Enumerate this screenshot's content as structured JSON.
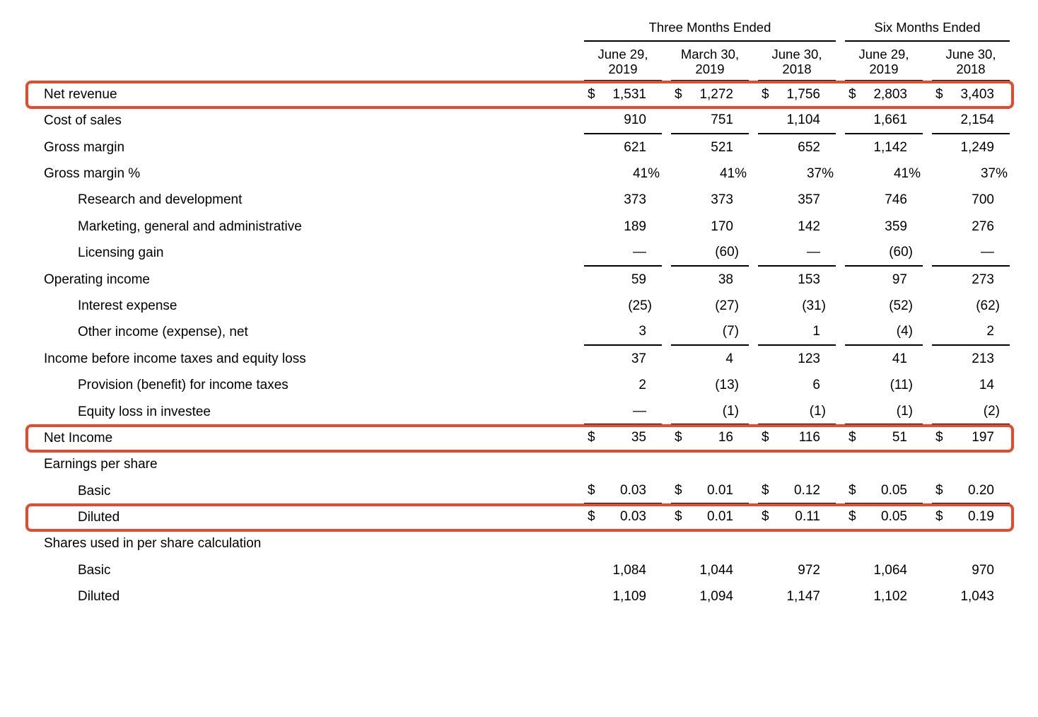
{
  "page": {
    "background": "#ffffff"
  },
  "accent": {
    "highlight_border": "#e8492b",
    "rule_color": "#000000"
  },
  "table": {
    "currency_symbol": "$",
    "groups": [
      {
        "label": "Three Months Ended"
      },
      {
        "label": "Six Months Ended"
      }
    ],
    "columns": [
      {
        "month": "June 29,",
        "year": "2019"
      },
      {
        "month": "March 30,",
        "year": "2019"
      },
      {
        "month": "June 30,",
        "year": "2018"
      },
      {
        "month": "June 29,",
        "year": "2019"
      },
      {
        "month": "June 30,",
        "year": "2018"
      }
    ],
    "rows": [
      {
        "label": "Net revenue",
        "indent": 0,
        "dollar": true,
        "highlight": true,
        "rule_below": false,
        "values": [
          "1,531",
          "1,272",
          "1,756",
          "2,803",
          "3,403"
        ]
      },
      {
        "label": "Cost of sales",
        "indent": 0,
        "dollar": false,
        "highlight": false,
        "rule_below": true,
        "values": [
          "910",
          "751",
          "1,104",
          "1,661",
          "2,154"
        ]
      },
      {
        "label": "Gross margin",
        "indent": 0,
        "dollar": false,
        "highlight": false,
        "rule_below": false,
        "values": [
          "621",
          "521",
          "652",
          "1,142",
          "1,249"
        ]
      },
      {
        "label": "Gross margin %",
        "indent": 0,
        "dollar": false,
        "highlight": false,
        "rule_below": false,
        "values": [
          "41%",
          "41%",
          "37%",
          "41%",
          "37%"
        ]
      },
      {
        "label": "Research and development",
        "indent": 1,
        "dollar": false,
        "highlight": false,
        "rule_below": false,
        "values": [
          "373",
          "373",
          "357",
          "746",
          "700"
        ]
      },
      {
        "label": "Marketing, general and administrative",
        "indent": 1,
        "dollar": false,
        "highlight": false,
        "rule_below": false,
        "values": [
          "189",
          "170",
          "142",
          "359",
          "276"
        ]
      },
      {
        "label": "Licensing gain",
        "indent": 1,
        "dollar": false,
        "highlight": false,
        "rule_below": true,
        "values": [
          "—",
          "(60)",
          "—",
          "(60)",
          "—"
        ]
      },
      {
        "label": "Operating income",
        "indent": 0,
        "dollar": false,
        "highlight": false,
        "rule_below": false,
        "values": [
          "59",
          "38",
          "153",
          "97",
          "273"
        ]
      },
      {
        "label": "Interest expense",
        "indent": 1,
        "dollar": false,
        "highlight": false,
        "rule_below": false,
        "values": [
          "(25)",
          "(27)",
          "(31)",
          "(52)",
          "(62)"
        ]
      },
      {
        "label": "Other income (expense), net",
        "indent": 1,
        "dollar": false,
        "highlight": false,
        "rule_below": true,
        "values": [
          "3",
          "(7)",
          "1",
          "(4)",
          "2"
        ]
      },
      {
        "label": "Income before income taxes and equity loss",
        "indent": 0,
        "dollar": false,
        "highlight": false,
        "rule_below": false,
        "values": [
          "37",
          "4",
          "123",
          "41",
          "213"
        ]
      },
      {
        "label": "Provision (benefit) for income taxes",
        "indent": 1,
        "dollar": false,
        "highlight": false,
        "rule_below": false,
        "values": [
          "2",
          "(13)",
          "6",
          "(11)",
          "14"
        ]
      },
      {
        "label": "Equity loss in investee",
        "indent": 1,
        "dollar": false,
        "highlight": false,
        "rule_below": true,
        "values": [
          "—",
          "(1)",
          "(1)",
          "(1)",
          "(2)"
        ]
      },
      {
        "label": "Net Income",
        "indent": 0,
        "dollar": true,
        "highlight": true,
        "rule_below": true,
        "values": [
          "35",
          "16",
          "116",
          "51",
          "197"
        ]
      },
      {
        "label": "Earnings per share",
        "indent": 0,
        "dollar": false,
        "highlight": false,
        "rule_below": false,
        "values": []
      },
      {
        "label": "Basic",
        "indent": 1,
        "dollar": true,
        "highlight": false,
        "rule_below": true,
        "values": [
          "0.03",
          "0.01",
          "0.12",
          "0.05",
          "0.20"
        ]
      },
      {
        "label": "Diluted",
        "indent": 1,
        "dollar": true,
        "highlight": true,
        "rule_below": true,
        "values": [
          "0.03",
          "0.01",
          "0.11",
          "0.05",
          "0.19"
        ]
      },
      {
        "label": "Shares used in per share calculation",
        "indent": 0,
        "dollar": false,
        "highlight": false,
        "rule_below": false,
        "values": []
      },
      {
        "label": "Basic",
        "indent": 1,
        "dollar": false,
        "highlight": false,
        "rule_below": false,
        "values": [
          "1,084",
          "1,044",
          "972",
          "1,064",
          "970"
        ]
      },
      {
        "label": "Diluted",
        "indent": 1,
        "dollar": false,
        "highlight": false,
        "rule_below": false,
        "values": [
          "1,109",
          "1,094",
          "1,147",
          "1,102",
          "1,043"
        ]
      }
    ]
  }
}
